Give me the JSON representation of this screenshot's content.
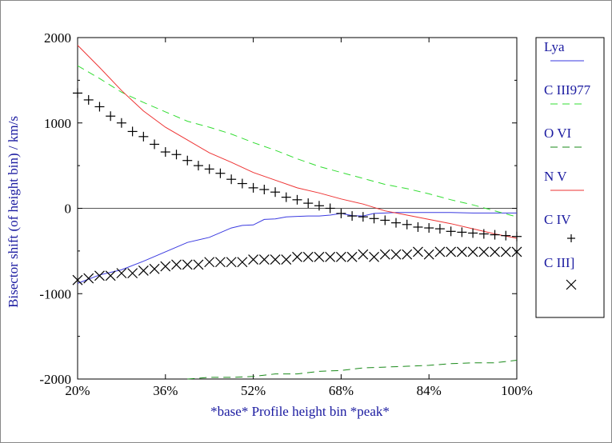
{
  "chart_data": {
    "type": "line",
    "title": "",
    "xlabel": "*base* Profile height bin *peak*",
    "ylabel": "Bisector shift (of height bin) / km/s",
    "xlim": [
      20,
      100
    ],
    "ylim": [
      -2000,
      2000
    ],
    "x_ticks": [
      20,
      36,
      52,
      68,
      84,
      100
    ],
    "x_tick_labels": [
      "20%",
      "36%",
      "52%",
      "68%",
      "84%",
      "100%"
    ],
    "y_ticks": [
      -2000,
      -1000,
      0,
      1000,
      2000
    ],
    "y_tick_labels": [
      "-2000",
      "-1000",
      "0",
      "1000",
      "2000"
    ],
    "zero_line": true,
    "grid": false,
    "legend_position": "right-outside",
    "series": [
      {
        "name": "Lya",
        "style": "solid",
        "color": "#3a3ae0",
        "x": [
          20,
          24,
          28,
          32,
          36,
          40,
          44,
          48,
          50,
          52,
          54,
          56,
          58,
          60,
          62,
          64,
          66,
          68,
          70,
          72,
          74,
          76,
          78,
          80,
          84,
          88,
          92,
          96,
          100
        ],
        "y": [
          -880,
          -780,
          -720,
          -620,
          -510,
          -400,
          -340,
          -230,
          -200,
          -195,
          -130,
          -125,
          -100,
          -95,
          -90,
          -90,
          -80,
          -60,
          -85,
          -90,
          -60,
          -55,
          -50,
          -50,
          -50,
          -50,
          -55,
          -55,
          -55
        ]
      },
      {
        "name": "C III977",
        "style": "dashed",
        "color": "#33dd33",
        "x": [
          20,
          24,
          28,
          32,
          36,
          40,
          44,
          48,
          52,
          56,
          60,
          64,
          68,
          72,
          76,
          80,
          84,
          88,
          92,
          96,
          100
        ],
        "y": [
          1670,
          1520,
          1360,
          1240,
          1130,
          1020,
          950,
          870,
          770,
          680,
          580,
          490,
          420,
          350,
          280,
          230,
          170,
          100,
          40,
          -30,
          -100
        ]
      },
      {
        "name": "O VI",
        "style": "dashed",
        "color": "#1a8a1a",
        "x": [
          40,
          44,
          48,
          52,
          56,
          60,
          64,
          68,
          72,
          76,
          80,
          84,
          88,
          92,
          96,
          100
        ],
        "y": [
          -2000,
          -1980,
          -1980,
          -1970,
          -1940,
          -1940,
          -1910,
          -1900,
          -1870,
          -1860,
          -1850,
          -1840,
          -1820,
          -1810,
          -1810,
          -1780
        ]
      },
      {
        "name": "N V",
        "style": "solid",
        "color": "#ee3333",
        "x": [
          20,
          24,
          28,
          32,
          36,
          40,
          44,
          48,
          52,
          56,
          60,
          64,
          68,
          72,
          76,
          80,
          84,
          88,
          92,
          96,
          100
        ],
        "y": [
          1910,
          1650,
          1380,
          1140,
          950,
          800,
          650,
          540,
          420,
          330,
          240,
          180,
          110,
          50,
          -30,
          -80,
          -130,
          -180,
          -240,
          -300,
          -350
        ]
      },
      {
        "name": "C IV",
        "style": "plus",
        "color": "#000000",
        "x": [
          20,
          22,
          24,
          26,
          28,
          30,
          32,
          34,
          36,
          38,
          40,
          42,
          44,
          46,
          48,
          50,
          52,
          54,
          56,
          58,
          60,
          62,
          64,
          66,
          68,
          70,
          72,
          74,
          76,
          78,
          80,
          82,
          84,
          86,
          88,
          90,
          92,
          94,
          96,
          98,
          100
        ],
        "y": [
          1350,
          1270,
          1190,
          1080,
          1000,
          900,
          840,
          750,
          660,
          630,
          560,
          500,
          460,
          410,
          340,
          290,
          240,
          220,
          190,
          130,
          100,
          60,
          30,
          0,
          -60,
          -90,
          -100,
          -120,
          -140,
          -170,
          -190,
          -220,
          -230,
          -240,
          -270,
          -280,
          -290,
          -300,
          -310,
          -320,
          -330
        ]
      },
      {
        "name": "C III]",
        "style": "cross",
        "color": "#000000",
        "x": [
          20,
          22,
          24,
          26,
          28,
          30,
          32,
          34,
          36,
          38,
          40,
          42,
          44,
          46,
          48,
          50,
          52,
          54,
          56,
          58,
          60,
          62,
          64,
          66,
          68,
          70,
          72,
          74,
          76,
          78,
          80,
          82,
          84,
          86,
          88,
          90,
          92,
          94,
          96,
          98,
          100
        ],
        "y": [
          -840,
          -820,
          -790,
          -790,
          -760,
          -760,
          -730,
          -710,
          -680,
          -660,
          -660,
          -660,
          -630,
          -630,
          -630,
          -630,
          -600,
          -600,
          -600,
          -600,
          -570,
          -570,
          -570,
          -570,
          -570,
          -570,
          -540,
          -570,
          -540,
          -540,
          -540,
          -510,
          -540,
          -510,
          -510,
          -510,
          -510,
          -510,
          -510,
          -510,
          -510
        ]
      }
    ]
  }
}
